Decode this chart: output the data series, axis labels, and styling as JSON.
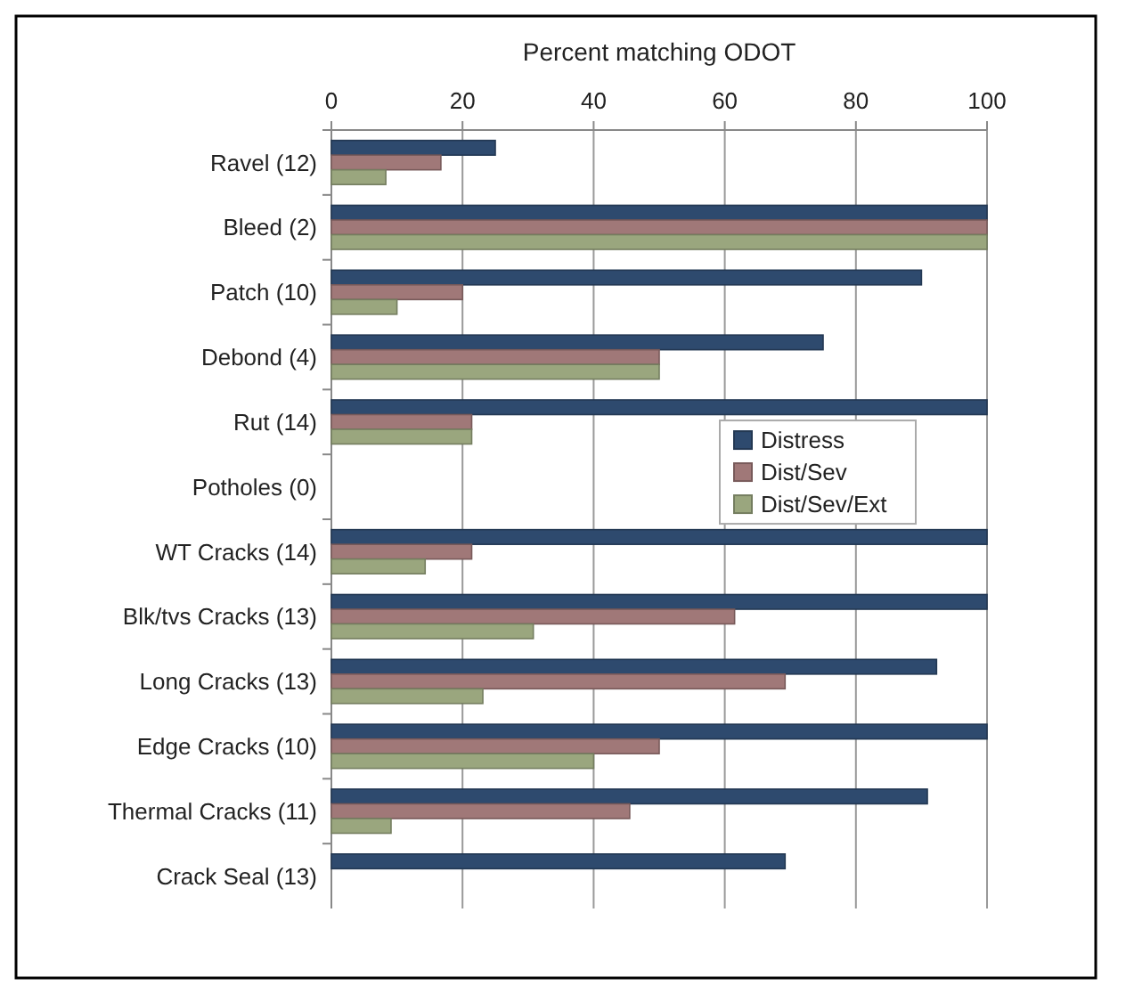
{
  "chart_data": {
    "type": "bar",
    "orientation": "horizontal",
    "xlabel": "Percent matching ODOT",
    "categories": [
      "Ravel (12)",
      "Bleed (2)",
      "Patch (10)",
      "Debond (4)",
      "Rut (14)",
      "Potholes (0)",
      "WT Cracks (14)",
      "Blk/tvs Cracks (13)",
      "Long Cracks (13)",
      "Edge Cracks (10)",
      "Thermal Cracks (11)",
      "Crack Seal (13)"
    ],
    "series": [
      {
        "name": "Distress",
        "color": "#2e4a6e",
        "values": [
          25,
          100,
          90,
          75,
          100,
          null,
          100,
          100,
          92.3,
          100,
          90.9,
          69.2
        ]
      },
      {
        "name": "Dist/Sev",
        "color": "#a07878",
        "values": [
          16.7,
          100,
          20,
          50,
          21.4,
          null,
          21.4,
          61.5,
          69.2,
          50,
          45.5,
          null
        ]
      },
      {
        "name": "Dist/Sev/Ext",
        "color": "#9aa67e",
        "values": [
          8.3,
          100,
          10,
          50,
          21.4,
          null,
          14.3,
          30.8,
          23.1,
          40,
          9.1,
          null
        ]
      }
    ],
    "xlim": [
      0,
      100
    ],
    "xticks": [
      0,
      20,
      40,
      60,
      80,
      100
    ],
    "grid": "x",
    "legend": "right"
  }
}
